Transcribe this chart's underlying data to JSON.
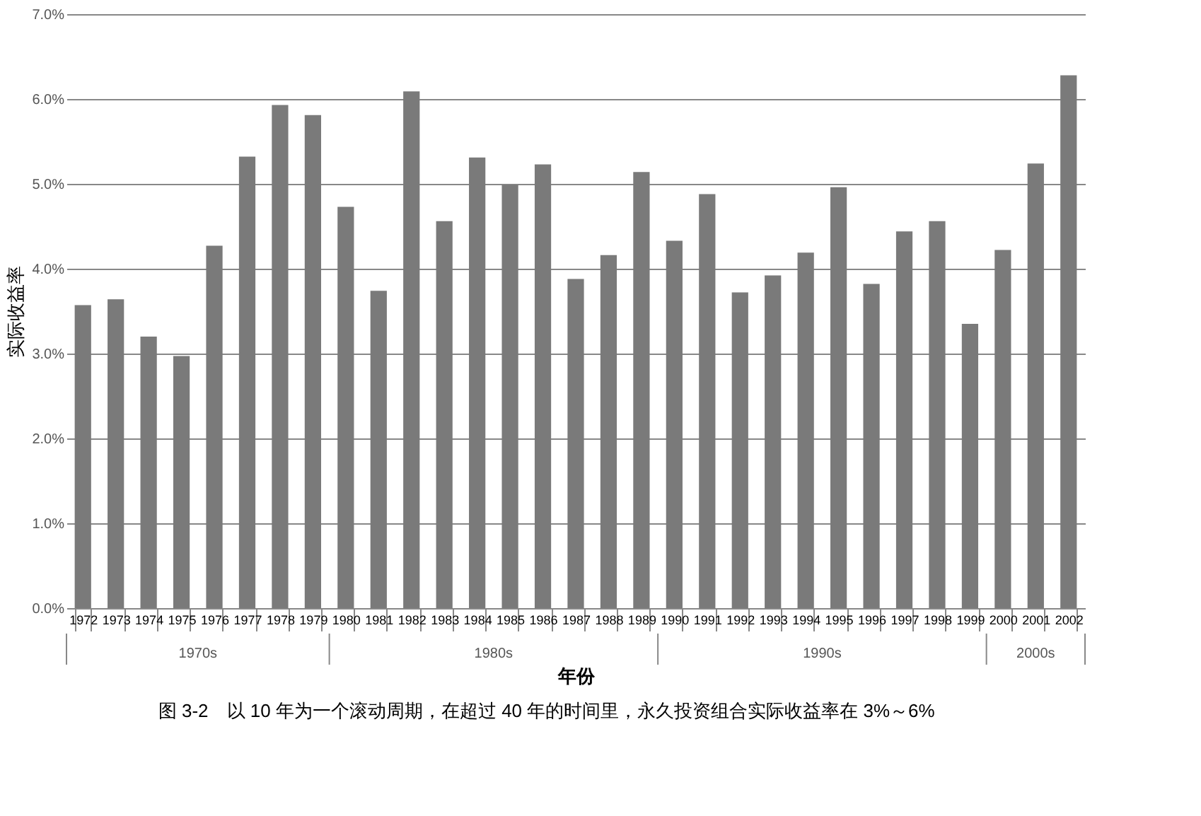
{
  "chart_data": {
    "type": "bar",
    "categories": [
      "1972",
      "1973",
      "1974",
      "1975",
      "1976",
      "1977",
      "1978",
      "1979",
      "1980",
      "1981",
      "1982",
      "1983",
      "1984",
      "1985",
      "1986",
      "1987",
      "1988",
      "1989",
      "1990",
      "1991",
      "1992",
      "1993",
      "1994",
      "1995",
      "1996",
      "1997",
      "1998",
      "1999",
      "2000",
      "2001",
      "2002"
    ],
    "values": [
      3.57,
      3.64,
      3.2,
      2.97,
      4.27,
      5.32,
      5.93,
      5.81,
      4.73,
      3.74,
      6.09,
      4.56,
      5.31,
      4.99,
      5.23,
      3.88,
      4.16,
      5.14,
      4.33,
      4.88,
      3.72,
      3.92,
      4.19,
      4.96,
      3.82,
      4.44,
      4.56,
      3.35,
      4.22,
      5.24,
      6.28
    ],
    "color": "#7a7a7a",
    "xlabel": "年份",
    "ylabel": "实际收益率",
    "ylim": [
      0,
      7
    ],
    "yticks": [
      {
        "value": 0,
        "label": "0.0%"
      },
      {
        "value": 1,
        "label": "1.0%"
      },
      {
        "value": 2,
        "label": "2.0%"
      },
      {
        "value": 3,
        "label": "3.0%"
      },
      {
        "value": 4,
        "label": "4.0%"
      },
      {
        "value": 5,
        "label": "5.0%"
      },
      {
        "value": 6,
        "label": "6.0%"
      },
      {
        "value": 7,
        "label": "7.0%"
      }
    ],
    "grid": "y",
    "annotations": [
      "1970s",
      "1980s",
      "1990s",
      "2000s",
      "图 3-2　以 10 年为一个滚动周期，在超过 40 年的时间里，永久投资组合实际收益率在 3%～6%"
    ]
  }
}
